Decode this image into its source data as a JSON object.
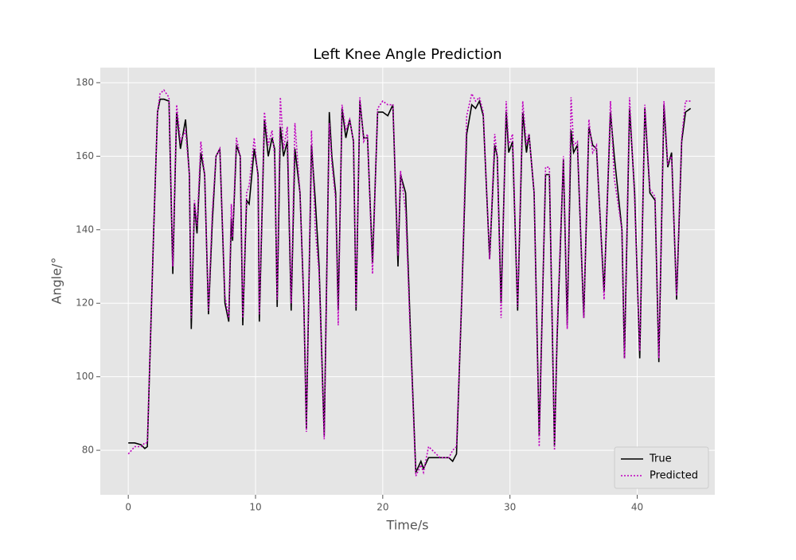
{
  "chart_data": {
    "type": "line",
    "title": "Left Knee Angle Prediction",
    "xlabel": "Time/s",
    "ylabel": "Angle/°",
    "x": [
      0,
      0.5,
      1.0,
      1.3,
      1.5,
      2.0,
      2.3,
      2.5,
      2.8,
      3.2,
      3.5,
      3.8,
      4.1,
      4.5,
      4.8,
      4.95,
      5.2,
      5.4,
      5.7,
      6.0,
      6.3,
      6.6,
      6.9,
      7.2,
      7.6,
      7.9,
      8.1,
      8.2,
      8.5,
      8.8,
      9.0,
      9.3,
      9.5,
      9.9,
      10.2,
      10.3,
      10.7,
      11.0,
      11.3,
      11.5,
      11.7,
      11.95,
      12.2,
      12.5,
      12.8,
      13.1,
      13.5,
      13.8,
      14.0,
      14.4,
      14.7,
      15.0,
      15.4,
      15.8,
      16.0,
      16.3,
      16.5,
      16.8,
      17.1,
      17.4,
      17.7,
      17.9,
      18.2,
      18.5,
      18.8,
      19.2,
      19.6,
      20.0,
      20.4,
      20.8,
      21.2,
      21.4,
      21.8,
      22.2,
      22.6,
      23.0,
      23.2,
      23.6,
      24.5,
      25.2,
      25.5,
      25.8,
      26.2,
      26.6,
      27.0,
      27.3,
      27.6,
      27.9,
      28.4,
      28.8,
      29.0,
      29.3,
      29.7,
      29.9,
      30.2,
      30.6,
      31.0,
      31.3,
      31.5,
      31.9,
      32.3,
      32.8,
      33.1,
      33.5,
      33.7,
      34.2,
      34.5,
      34.8,
      35.0,
      35.3,
      35.8,
      36.2,
      36.5,
      36.8,
      37.4,
      37.9,
      38.2,
      38.8,
      39.0,
      39.4,
      39.8,
      40.2,
      40.6,
      41.0,
      41.4,
      41.7,
      42.1,
      42.4,
      42.7,
      43.1,
      43.5,
      43.8,
      44.2
    ],
    "series": [
      {
        "name": "True",
        "color": "#000000",
        "linestyle": "solid",
        "values": [
          82,
          82,
          81.5,
          80.5,
          81,
          140,
          172,
          175.5,
          175.5,
          175,
          128,
          172,
          162,
          170,
          155,
          113,
          147,
          139,
          161,
          155,
          117,
          142,
          160,
          162,
          120,
          115,
          143,
          137,
          163,
          160,
          114,
          148,
          147,
          162,
          155,
          115,
          170,
          160,
          165,
          162,
          119,
          168,
          160,
          164,
          118,
          162,
          150,
          120,
          86,
          163,
          148,
          130,
          84,
          172,
          160,
          150,
          118,
          173,
          165,
          170,
          164,
          118,
          175,
          165,
          165,
          131,
          172,
          172,
          171,
          174,
          130,
          155,
          150,
          110,
          74,
          77,
          75,
          78,
          78,
          78,
          77,
          79,
          120,
          166,
          174,
          173,
          175,
          171,
          132,
          163,
          160,
          120,
          172,
          161,
          164,
          118,
          172,
          161,
          166,
          150,
          84,
          155,
          155,
          81,
          110,
          159,
          114,
          167,
          161,
          163,
          116,
          168,
          163,
          162,
          123,
          172,
          160,
          140,
          105,
          173,
          150,
          105,
          173,
          150,
          148,
          104,
          174,
          157,
          161,
          121,
          164,
          172,
          173
        ]
      },
      {
        "name": "Predicted",
        "color": "#bf00bf",
        "linestyle": "dotted",
        "values": [
          79,
          81,
          81,
          82,
          82,
          140,
          172,
          177,
          178,
          176,
          130,
          174,
          164,
          167,
          155,
          116,
          148,
          141,
          164,
          155,
          118,
          145,
          160,
          162,
          122,
          116,
          147,
          138,
          165,
          160,
          116,
          150,
          152,
          165,
          154,
          117,
          172,
          163,
          167,
          160,
          121,
          176,
          162,
          168,
          120,
          169,
          150,
          120,
          85,
          167,
          140,
          128,
          83,
          169,
          158,
          148,
          114,
          174,
          167,
          170,
          164,
          119,
          176,
          164,
          166,
          128,
          173,
          175,
          174,
          174,
          133,
          156,
          145,
          108,
          73,
          76,
          74,
          81,
          78,
          78,
          80,
          81,
          121,
          171,
          177,
          175,
          176,
          172,
          132,
          166,
          160,
          116,
          175,
          163,
          166,
          119,
          175,
          163,
          166,
          150,
          81,
          157,
          157,
          80,
          112,
          160,
          113,
          176,
          163,
          164,
          116,
          170,
          161,
          163,
          121,
          175,
          154,
          140,
          105,
          176,
          148,
          107,
          174,
          151,
          149,
          105,
          175,
          158,
          160,
          122,
          165,
          175,
          175
        ]
      }
    ],
    "xlim": [
      -2.2,
      46.1
    ],
    "ylim": [
      67.9,
      184.1
    ],
    "xticks": [
      0,
      10,
      20,
      30,
      40
    ],
    "yticks": [
      80,
      100,
      120,
      140,
      160,
      180
    ],
    "grid": true,
    "legend": "lower right"
  }
}
